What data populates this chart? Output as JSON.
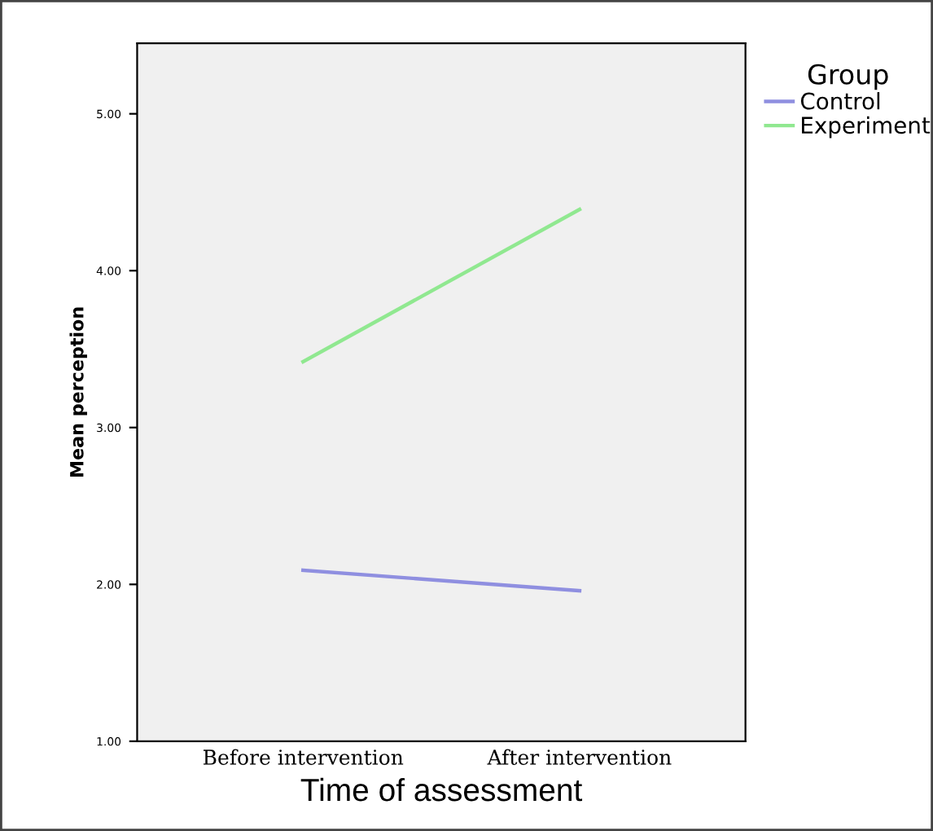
{
  "chart_data": {
    "type": "line",
    "xlabel": "Time of assessment",
    "ylabel": "Mean perception",
    "legend_title": "Group",
    "categories": [
      "Before intervention",
      "After intervention"
    ],
    "series": [
      {
        "name": "Control",
        "color": "#8f8fe0",
        "values": [
          2.09,
          1.96
        ]
      },
      {
        "name": "Experiment",
        "color": "#90e890",
        "values": [
          3.42,
          4.39
        ]
      }
    ],
    "ylim": [
      1,
      5.45
    ],
    "yticks": [
      {
        "value": 1,
        "label": "1.00"
      },
      {
        "value": 2,
        "label": "2.00"
      },
      {
        "value": 3,
        "label": "3.00"
      },
      {
        "value": 4,
        "label": "4.00"
      },
      {
        "value": 5,
        "label": "5.00"
      }
    ],
    "grid": false,
    "legend": "top right",
    "marker": "none",
    "line_style": "solid"
  }
}
